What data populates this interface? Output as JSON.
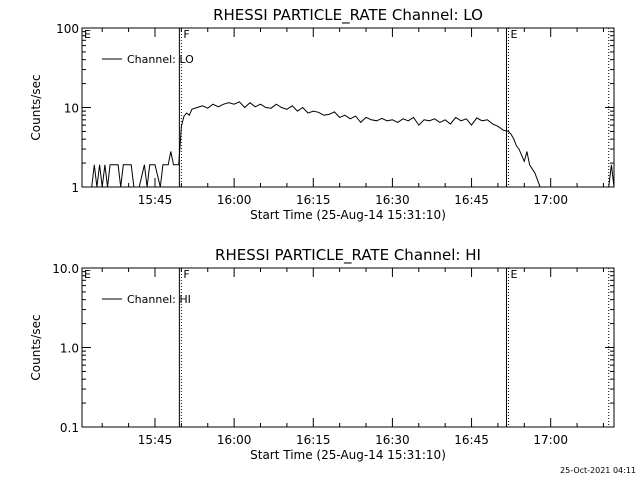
{
  "footer": {
    "date": "25-Oct-2021 04:11"
  },
  "chart_data": [
    {
      "type": "line",
      "title": "RHESSI PARTICLE_RATE Channel: LO",
      "xlabel": "Start Time (25-Aug-14 15:31:10)",
      "ylabel": "Counts/sec",
      "yscale": "log",
      "ylim": [
        1,
        100
      ],
      "yticks": [
        {
          "value": 1,
          "label": "1"
        },
        {
          "value": 10,
          "label": "10"
        },
        {
          "value": 100,
          "label": "100"
        }
      ],
      "xlim": [
        "15:31:10",
        "17:12:00"
      ],
      "xticks": [
        "15:45",
        "16:00",
        "16:15",
        "16:30",
        "16:45",
        "17:00"
      ],
      "legend": {
        "entry": "Channel: LO",
        "position": "top-left"
      },
      "markers": [
        {
          "label": "E",
          "time": "15:31:10",
          "style": "none"
        },
        {
          "label": "F",
          "time": "15:50:00",
          "style": "solid+dotted"
        },
        {
          "label": "E",
          "time": "16:52:00",
          "style": "solid+dotted"
        },
        {
          "label": "",
          "time": "17:11:00",
          "style": "dotted"
        }
      ],
      "series": [
        {
          "x": [
            "15:31:10",
            "15:33",
            "15:33:30",
            "15:34",
            "15:34:30",
            "15:35",
            "15:35:30",
            "15:36",
            "15:36:30",
            "15:37",
            "15:38",
            "15:38:30",
            "15:39",
            "15:40",
            "15:40:30",
            "15:41",
            "15:42",
            "15:43",
            "15:43:30",
            "15:44",
            "15:44:30",
            "15:45",
            "15:46",
            "15:46:30",
            "15:47",
            "15:47:30",
            "15:48",
            "15:48:30",
            "15:49",
            "15:49:30",
            "15:50",
            "15:50:30",
            "15:51",
            "15:51:30",
            "15:52",
            "15:53",
            "15:54",
            "15:55",
            "15:56",
            "15:57",
            "15:58",
            "15:59",
            "16:00",
            "16:01",
            "16:02",
            "16:03",
            "16:04",
            "16:05",
            "16:06",
            "16:07",
            "16:08",
            "16:09",
            "16:10",
            "16:11",
            "16:12",
            "16:13",
            "16:14",
            "16:15",
            "16:16",
            "16:17",
            "16:18",
            "16:19",
            "16:20",
            "16:21",
            "16:22",
            "16:23",
            "16:24",
            "16:25",
            "16:26",
            "16:27",
            "16:28",
            "16:29",
            "16:30",
            "16:31",
            "16:32",
            "16:33",
            "16:34",
            "16:35",
            "16:36",
            "16:37",
            "16:38",
            "16:39",
            "16:40",
            "16:41",
            "16:42",
            "16:43",
            "16:44",
            "16:45",
            "16:46",
            "16:47",
            "16:48",
            "16:49",
            "16:50",
            "16:51",
            "16:52",
            "16:52:30",
            "16:53",
            "16:53:30",
            "16:54",
            "16:54:30",
            "16:55",
            "16:55:30",
            "16:56",
            "16:57",
            "16:58",
            "16:59",
            "17:00",
            "17:01",
            "17:02",
            "17:03",
            "17:04",
            "17:05",
            "17:06",
            "17:07",
            "17:08",
            "17:09",
            "17:10",
            "17:11",
            "17:11:30",
            "17:12"
          ],
          "y": [
            1,
            1,
            1.9,
            1,
            1.9,
            1,
            1.9,
            1,
            1.9,
            1.9,
            1.9,
            1,
            1.9,
            1.9,
            1.9,
            1,
            1,
            1.9,
            1,
            1.9,
            1.9,
            1.9,
            1,
            1.9,
            1.9,
            1.9,
            2.8,
            1.9,
            1.9,
            1.9,
            5.8,
            7.8,
            8.5,
            8.0,
            9.5,
            10.0,
            10.5,
            9.8,
            11.0,
            10.2,
            11.0,
            11.5,
            11.0,
            11.8,
            10.0,
            11.5,
            10.2,
            11.0,
            10.0,
            9.8,
            11.0,
            10.0,
            9.5,
            10.5,
            9.0,
            10.0,
            8.5,
            9.0,
            8.7,
            8.0,
            8.2,
            8.8,
            7.5,
            8.0,
            7.2,
            7.8,
            6.5,
            7.5,
            7.0,
            6.8,
            7.3,
            6.8,
            7.0,
            6.5,
            7.2,
            6.8,
            7.5,
            6.0,
            7.0,
            6.8,
            7.2,
            6.5,
            7.0,
            6.2,
            7.5,
            6.8,
            7.2,
            6.0,
            7.4,
            6.8,
            7.0,
            6.2,
            5.8,
            5.2,
            5.0,
            4.6,
            4.0,
            3.3,
            3.0,
            2.5,
            2.1,
            2.8,
            1.9,
            1.5,
            1,
            1,
            1,
            1,
            1,
            1,
            1,
            1,
            1,
            1,
            1,
            1,
            1,
            1,
            1.9,
            1
          ]
        }
      ]
    },
    {
      "type": "line",
      "title": "RHESSI PARTICLE_RATE Channel: HI",
      "xlabel": "Start Time (25-Aug-14 15:31:10)",
      "ylabel": "Counts/sec",
      "yscale": "log",
      "ylim": [
        0.1,
        10
      ],
      "yticks": [
        {
          "value": 0.1,
          "label": "0.1"
        },
        {
          "value": 1,
          "label": "1.0"
        },
        {
          "value": 10,
          "label": "10.0"
        }
      ],
      "xlim": [
        "15:31:10",
        "17:12:00"
      ],
      "xticks": [
        "15:45",
        "16:00",
        "16:15",
        "16:30",
        "16:45",
        "17:00"
      ],
      "legend": {
        "entry": "Channel: HI",
        "position": "top-left"
      },
      "markers": [
        {
          "label": "E",
          "time": "15:31:10",
          "style": "none"
        },
        {
          "label": "F",
          "time": "15:50:00",
          "style": "solid+dotted"
        },
        {
          "label": "E",
          "time": "16:52:00",
          "style": "solid+dotted"
        },
        {
          "label": "",
          "time": "17:11:00",
          "style": "dotted"
        }
      ],
      "series": [
        {
          "x": [],
          "y": []
        }
      ]
    }
  ]
}
